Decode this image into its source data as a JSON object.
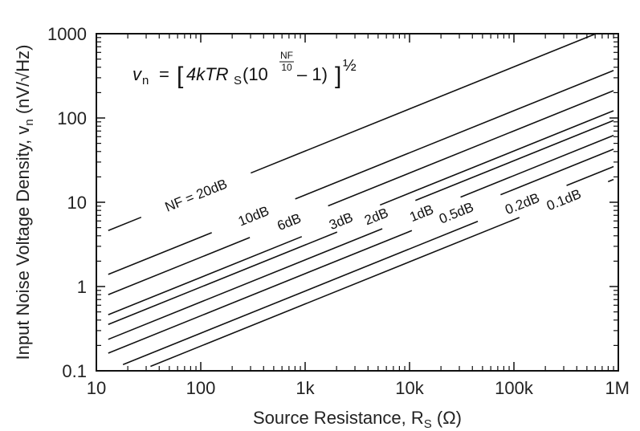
{
  "chart_data": {
    "type": "line",
    "x_scale": "log",
    "y_scale": "log",
    "xlim": [
      10,
      1000000
    ],
    "ylim": [
      0.1,
      1000
    ],
    "x_ticks": [
      10,
      100,
      1000,
      10000,
      100000,
      1000000
    ],
    "x_tick_labels": [
      "10",
      "100",
      "1k",
      "10k",
      "100k",
      "1M"
    ],
    "y_ticks": [
      0.1,
      1,
      10,
      100,
      1000
    ],
    "y_tick_labels": [
      "0.1",
      "1",
      "10",
      "100",
      "1000"
    ],
    "xlabel": "Source Resistance, R",
    "xlabel_sub": "S",
    "xlabel_unit": "(Ω)",
    "ylabel": "Input Noise Voltage Density, v",
    "ylabel_sub": "n",
    "ylabel_unit": "(nV/√Hz)",
    "formula": {
      "lhs": "v",
      "lhs_sub": "n",
      "equals": "=",
      "body": "4kTR",
      "body_sub": "S",
      "base": "(10",
      "exponent_num": "NF",
      "exponent_den": "10",
      "tail": "– 1)",
      "power": "½"
    },
    "grid": false,
    "series": [
      {
        "name": "NF = 20dB",
        "nf_db": 20,
        "x_range": [
          13,
          600000
        ],
        "label_at_x": 90
      },
      {
        "name": "10dB",
        "nf_db": 10,
        "x_range": [
          13,
          900000
        ],
        "label_at_x": 320
      },
      {
        "name": "6dB",
        "nf_db": 6,
        "x_range": [
          13,
          900000
        ],
        "label_at_x": 700
      },
      {
        "name": "3dB",
        "nf_db": 3,
        "x_range": [
          13,
          900000
        ],
        "label_at_x": 2200
      },
      {
        "name": "2dB",
        "nf_db": 2,
        "x_range": [
          13,
          900000
        ],
        "label_at_x": 4800
      },
      {
        "name": "1dB",
        "nf_db": 1,
        "x_range": [
          13,
          900000
        ],
        "label_at_x": 13000
      },
      {
        "name": "0.5dB",
        "nf_db": 0.5,
        "x_range": [
          13,
          900000
        ],
        "label_at_x": 28000
      },
      {
        "name": "0.2dB",
        "nf_db": 0.2,
        "x_range": [
          18,
          900000
        ],
        "label_at_x": 120000
      },
      {
        "name": "0.1dB",
        "nf_db": 0.1,
        "x_range": [
          33,
          900000
        ],
        "label_at_x": 300000
      }
    ]
  }
}
